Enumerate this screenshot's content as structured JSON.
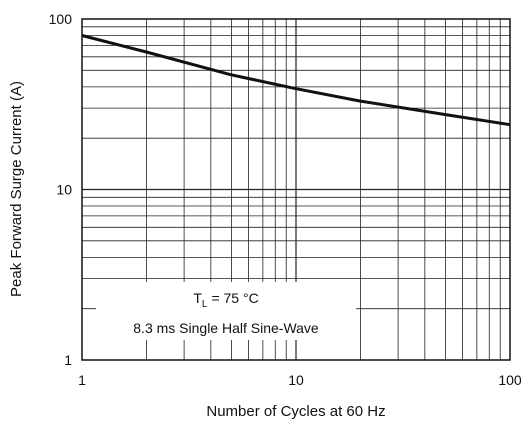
{
  "chart_data": {
    "type": "line",
    "title": "",
    "xlabel": "Number of Cycles at 60 Hz",
    "ylabel": "Peak Forward Surge Current (A)",
    "x_scale": "log",
    "y_scale": "log",
    "xlim": [
      1,
      100
    ],
    "ylim": [
      1,
      100
    ],
    "x_tick_labels": [
      "1",
      "10",
      "100"
    ],
    "y_tick_labels": [
      "1",
      "10",
      "100"
    ],
    "grid": true,
    "series": [
      {
        "x": [
          1,
          2,
          5,
          10,
          20,
          50,
          100
        ],
        "y": [
          80,
          64,
          47,
          39,
          33,
          27.5,
          24
        ]
      }
    ],
    "annotation": {
      "symbol": "T",
      "subscript": "L",
      "condition": "= 75 °C",
      "line2": "8.3 ms Single Half Sine-Wave"
    },
    "colors": {
      "curve": "#111111",
      "grid": "#222222",
      "background": "#ffffff"
    }
  }
}
